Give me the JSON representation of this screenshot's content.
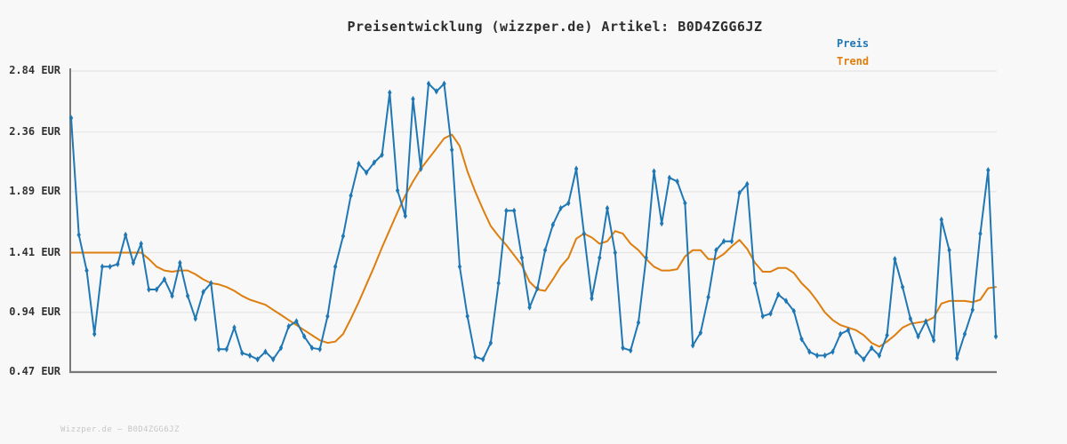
{
  "header": {
    "title": "Preisentwicklung (wizzper.de) Artikel: B0D4ZGG6JZ"
  },
  "footer": {
    "watermark": "Wizzper.de — B0D4ZGG6JZ"
  },
  "chart_data": {
    "type": "line",
    "title": "Preisentwicklung (wizzper.de) Artikel: B0D4ZGG6JZ",
    "currency": "EUR",
    "ylim": [
      0.47,
      2.84
    ],
    "grid": true,
    "legend_position": "top-right",
    "x_tick_labels_visible": false,
    "y_ticks": [
      {
        "label": "2.84 EUR",
        "value": 2.84
      },
      {
        "label": "2.36 EUR",
        "value": 2.36
      },
      {
        "label": "1.89 EUR",
        "value": 1.89
      },
      {
        "label": "1.41 EUR",
        "value": 1.41
      },
      {
        "label": "0.94 EUR",
        "value": 0.94
      },
      {
        "label": "0.47 EUR",
        "value": 0.47
      }
    ],
    "colors": {
      "background": "#f8f8f8",
      "grid": "#e5e5e5",
      "axis": "#787878",
      "title_text": "#2d2d2d",
      "tick_text": "#333333",
      "watermark_text": "#c6c6c6",
      "price": "#1f77b4",
      "trend": "#dd7e0e"
    },
    "series": [
      {
        "name": "Preis",
        "color": "#1f77b4",
        "marker": "thin-diamond",
        "values": [
          2.47,
          1.55,
          1.27,
          0.77,
          1.3,
          1.3,
          1.32,
          1.55,
          1.33,
          1.48,
          1.12,
          1.12,
          1.2,
          1.07,
          1.33,
          1.07,
          0.89,
          1.1,
          1.17,
          0.65,
          0.65,
          0.82,
          0.62,
          0.6,
          0.57,
          0.63,
          0.57,
          0.66,
          0.83,
          0.87,
          0.75,
          0.66,
          0.65,
          0.91,
          1.3,
          1.54,
          1.86,
          2.11,
          2.04,
          2.12,
          2.18,
          2.67,
          1.9,
          1.7,
          2.62,
          2.07,
          2.74,
          2.68,
          2.74,
          2.22,
          1.3,
          0.91,
          0.59,
          0.57,
          0.7,
          1.17,
          1.74,
          1.74,
          1.37,
          0.98,
          1.13,
          1.43,
          1.63,
          1.76,
          1.8,
          2.07,
          1.56,
          1.05,
          1.37,
          1.76,
          1.41,
          0.66,
          0.64,
          0.86,
          1.37,
          2.05,
          1.64,
          2.0,
          1.97,
          1.8,
          0.68,
          0.78,
          1.06,
          1.43,
          1.5,
          1.5,
          1.88,
          1.95,
          1.17,
          0.91,
          0.93,
          1.08,
          1.03,
          0.95,
          0.73,
          0.63,
          0.6,
          0.6,
          0.63,
          0.77,
          0.8,
          0.63,
          0.57,
          0.66,
          0.6,
          0.76,
          1.36,
          1.14,
          0.89,
          0.75,
          0.87,
          0.72,
          1.67,
          1.43,
          0.58,
          0.77,
          0.96,
          1.56,
          2.06,
          0.75
        ]
      },
      {
        "name": "Trend",
        "color": "#dd7e0e",
        "marker": "none",
        "values": [
          1.41,
          1.41,
          1.41,
          1.41,
          1.41,
          1.41,
          1.41,
          1.41,
          1.41,
          1.41,
          1.36,
          1.3,
          1.27,
          1.26,
          1.27,
          1.27,
          1.24,
          1.2,
          1.17,
          1.16,
          1.14,
          1.11,
          1.07,
          1.04,
          1.02,
          1.0,
          0.96,
          0.92,
          0.88,
          0.84,
          0.8,
          0.76,
          0.72,
          0.7,
          0.71,
          0.77,
          0.89,
          1.02,
          1.16,
          1.3,
          1.45,
          1.59,
          1.73,
          1.86,
          1.97,
          2.07,
          2.15,
          2.23,
          2.31,
          2.34,
          2.25,
          2.05,
          1.89,
          1.75,
          1.62,
          1.54,
          1.47,
          1.39,
          1.31,
          1.18,
          1.12,
          1.11,
          1.2,
          1.3,
          1.37,
          1.52,
          1.56,
          1.53,
          1.48,
          1.5,
          1.58,
          1.56,
          1.48,
          1.43,
          1.36,
          1.3,
          1.27,
          1.27,
          1.28,
          1.38,
          1.43,
          1.43,
          1.36,
          1.36,
          1.4,
          1.46,
          1.51,
          1.44,
          1.33,
          1.26,
          1.26,
          1.29,
          1.29,
          1.25,
          1.17,
          1.11,
          1.03,
          0.94,
          0.88,
          0.84,
          0.82,
          0.8,
          0.76,
          0.7,
          0.67,
          0.71,
          0.76,
          0.82,
          0.85,
          0.86,
          0.87,
          0.9,
          1.01,
          1.03,
          1.03,
          1.03,
          1.02,
          1.04,
          1.13,
          1.14
        ]
      }
    ]
  }
}
